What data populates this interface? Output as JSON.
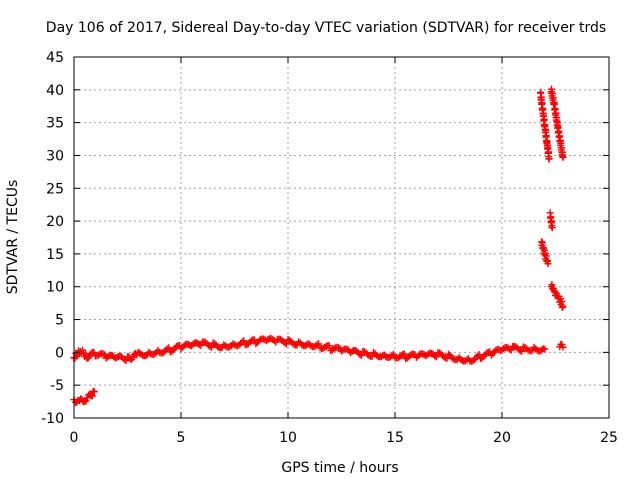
{
  "chart_data": {
    "type": "scatter",
    "title": "Day 106 of 2017, Sidereal Day-to-day VTEC variation (SDTVAR) for receiver trds",
    "xlabel": "GPS time / hours",
    "ylabel": "SDTVAR / TECUs",
    "xlim": [
      0,
      25
    ],
    "ylim": [
      -10,
      45
    ],
    "xticks": [
      0,
      5,
      10,
      15,
      20,
      25
    ],
    "yticks": [
      -10,
      -5,
      0,
      5,
      10,
      15,
      20,
      25,
      30,
      35,
      40,
      45
    ],
    "grid": true,
    "marker": "plus",
    "color": "#ff0000",
    "series": [
      {
        "name": "main-trace",
        "points": [
          [
            0.0,
            -0.8
          ],
          [
            0.3,
            0.3
          ],
          [
            0.6,
            -0.6
          ],
          [
            1.0,
            -0.2
          ],
          [
            1.5,
            -0.7
          ],
          [
            2.0,
            -0.9
          ],
          [
            2.5,
            -1.0
          ],
          [
            3.0,
            -0.3
          ],
          [
            3.5,
            -0.1
          ],
          [
            4.0,
            0.2
          ],
          [
            4.5,
            0.4
          ],
          [
            5.0,
            0.8
          ],
          [
            5.5,
            1.0
          ],
          [
            6.0,
            1.3
          ],
          [
            6.5,
            1.1
          ],
          [
            7.0,
            1.0
          ],
          [
            7.5,
            1.3
          ],
          [
            8.0,
            1.5
          ],
          [
            8.5,
            1.6
          ],
          [
            9.0,
            1.8
          ],
          [
            9.5,
            1.7
          ],
          [
            10.0,
            1.6
          ],
          [
            10.5,
            1.4
          ],
          [
            11.0,
            1.3
          ],
          [
            11.5,
            1.0
          ],
          [
            12.0,
            0.6
          ],
          [
            12.5,
            0.3
          ],
          [
            13.0,
            0.0
          ],
          [
            13.5,
            -0.2
          ],
          [
            14.0,
            -0.3
          ],
          [
            14.5,
            -0.4
          ],
          [
            15.0,
            -0.5
          ],
          [
            15.5,
            -0.6
          ],
          [
            16.0,
            -0.6
          ],
          [
            16.5,
            -0.5
          ],
          [
            17.0,
            -0.4
          ],
          [
            17.5,
            -0.6
          ],
          [
            18.0,
            -0.9
          ],
          [
            18.5,
            -1.1
          ],
          [
            19.0,
            -0.6
          ],
          [
            19.5,
            -0.2
          ],
          [
            20.0,
            0.3
          ],
          [
            20.5,
            0.6
          ],
          [
            21.0,
            0.5
          ],
          [
            21.5,
            0.6
          ],
          [
            22.0,
            0.5
          ]
        ]
      },
      {
        "name": "early-negative-segment",
        "points": [
          [
            0.0,
            -7.2
          ],
          [
            0.25,
            -7.5
          ],
          [
            0.5,
            -7.2
          ],
          [
            0.75,
            -6.7
          ],
          [
            0.95,
            -6.0
          ]
        ]
      },
      {
        "name": "late-decline-a",
        "points": [
          [
            21.8,
            39.5
          ],
          [
            21.9,
            37.0
          ],
          [
            22.0,
            34.5
          ],
          [
            22.1,
            32.0
          ],
          [
            22.2,
            29.5
          ]
        ]
      },
      {
        "name": "late-decline-b",
        "points": [
          [
            22.3,
            40.0
          ],
          [
            22.45,
            37.5
          ],
          [
            22.6,
            34.5
          ],
          [
            22.75,
            31.5
          ],
          [
            22.85,
            29.7
          ]
        ]
      },
      {
        "name": "late-decline-c",
        "points": [
          [
            22.25,
            21.0
          ],
          [
            22.35,
            19.0
          ]
        ]
      },
      {
        "name": "late-decline-d",
        "points": [
          [
            21.85,
            16.8
          ],
          [
            22.0,
            15.0
          ],
          [
            22.15,
            13.5
          ]
        ]
      },
      {
        "name": "late-decline-e",
        "points": [
          [
            22.3,
            10.3
          ],
          [
            22.5,
            9.0
          ],
          [
            22.7,
            8.0
          ],
          [
            22.85,
            7.0
          ]
        ]
      },
      {
        "name": "late-small",
        "points": [
          [
            22.7,
            1.2
          ],
          [
            22.85,
            0.8
          ]
        ]
      }
    ]
  }
}
